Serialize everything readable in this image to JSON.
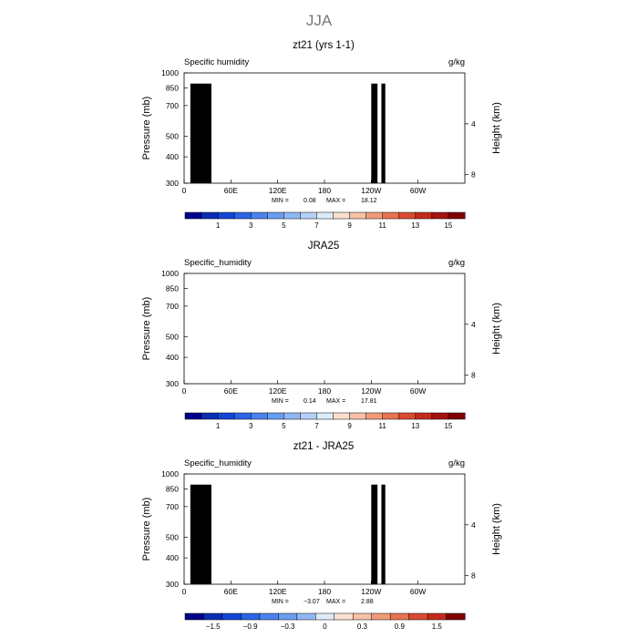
{
  "figure": {
    "title": "JJA"
  },
  "chart_data": [
    {
      "type": "heatmap",
      "title": "zt21 (yrs 1-1)",
      "subtitle_left": "Specific humidity",
      "subtitle_right": "g/kg",
      "xlabel": "",
      "ylabel": "Pressure (mb)",
      "ylabel_right": "Height (km)",
      "x_ticks": [
        "0",
        "60E",
        "120E",
        "180",
        "120W",
        "60W"
      ],
      "x_tick_values": [
        0,
        60,
        120,
        180,
        240,
        300
      ],
      "xlim": [
        0,
        360
      ],
      "y_ticks": [
        "300",
        "400",
        "500",
        "700",
        "850",
        "1000"
      ],
      "y_tick_values": [
        300,
        400,
        500,
        700,
        850,
        1000
      ],
      "ylim": [
        1000,
        300
      ],
      "y_right_ticks": [
        "8",
        "4"
      ],
      "y_right_values": [
        8,
        4
      ],
      "min_label": "MIN =",
      "min_value": "0.08",
      "max_label": "MAX =",
      "max_value": "18.12",
      "colorbar_labels": [
        "1",
        "3",
        "5",
        "7",
        "9",
        "11",
        "13",
        "15"
      ],
      "colorbar_levels": [
        0,
        1,
        2,
        3,
        4,
        5,
        6,
        7,
        8,
        9,
        10,
        11,
        12,
        13,
        14,
        15,
        16
      ],
      "colors": [
        "#00008b",
        "#0a2db5",
        "#1346d4",
        "#2a64e8",
        "#4a82ee",
        "#6a9df0",
        "#8fb8f3",
        "#b5d0f6",
        "#ddeaf8",
        "#f8e0d0",
        "#f6c1a6",
        "#f09a78",
        "#e87351",
        "#da4a30",
        "#c42a1c",
        "#a51310",
        "#800000"
      ],
      "land_blocks": true
    },
    {
      "type": "heatmap",
      "title": "JRA25",
      "subtitle_left": "Specific_humidity",
      "subtitle_right": "g/kg",
      "xlabel": "",
      "ylabel": "Pressure (mb)",
      "ylabel_right": "Height (km)",
      "x_ticks": [
        "0",
        "60E",
        "120E",
        "180",
        "120W",
        "60W"
      ],
      "x_tick_values": [
        0,
        60,
        120,
        180,
        240,
        300
      ],
      "xlim": [
        0,
        360
      ],
      "y_ticks": [
        "300",
        "400",
        "500",
        "700",
        "850",
        "1000"
      ],
      "y_tick_values": [
        300,
        400,
        500,
        700,
        850,
        1000
      ],
      "ylim": [
        1000,
        300
      ],
      "y_right_ticks": [
        "8",
        "4"
      ],
      "y_right_values": [
        8,
        4
      ],
      "min_label": "MIN =",
      "min_value": "0.14",
      "max_label": "MAX =",
      "max_value": "17.81",
      "colorbar_labels": [
        "1",
        "3",
        "5",
        "7",
        "9",
        "11",
        "13",
        "15"
      ],
      "colorbar_levels": [
        0,
        1,
        2,
        3,
        4,
        5,
        6,
        7,
        8,
        9,
        10,
        11,
        12,
        13,
        14,
        15,
        16
      ],
      "colors": [
        "#00008b",
        "#0a2db5",
        "#1346d4",
        "#2a64e8",
        "#4a82ee",
        "#6a9df0",
        "#8fb8f3",
        "#b5d0f6",
        "#ddeaf8",
        "#f8e0d0",
        "#f6c1a6",
        "#f09a78",
        "#e87351",
        "#da4a30",
        "#c42a1c",
        "#a51310",
        "#800000"
      ],
      "land_blocks": false
    },
    {
      "type": "heatmap",
      "title": "zt21 - JRA25",
      "subtitle_left": "Specific_humidity",
      "subtitle_right": "g/kg",
      "xlabel": "",
      "ylabel": "Pressure (mb)",
      "ylabel_right": "Height (km)",
      "x_ticks": [
        "0",
        "60E",
        "120E",
        "180",
        "120W",
        "60W"
      ],
      "x_tick_values": [
        0,
        60,
        120,
        180,
        240,
        300
      ],
      "xlim": [
        0,
        360
      ],
      "y_ticks": [
        "300",
        "400",
        "500",
        "700",
        "850",
        "1000"
      ],
      "y_tick_values": [
        300,
        400,
        500,
        700,
        850,
        1000
      ],
      "ylim": [
        1000,
        300
      ],
      "y_right_ticks": [
        "8",
        "4"
      ],
      "y_right_values": [
        8,
        4
      ],
      "min_label": "MIN =",
      "min_value": "−3.07",
      "max_label": "MAX =",
      "max_value": "2.88",
      "colorbar_labels": [
        "−1.5",
        "−0.9",
        "−0.3",
        "0",
        "0.3",
        "0.9",
        "1.5"
      ],
      "colorbar_levels": [
        -2.1,
        -1.8,
        -1.5,
        -1.2,
        -0.9,
        -0.6,
        -0.3,
        0,
        0.3,
        0.6,
        0.9,
        1.2,
        1.5,
        1.8,
        2.1
      ],
      "colors": [
        "#00008b",
        "#0a2db5",
        "#1346d4",
        "#2a64e8",
        "#4a82ee",
        "#6a9df0",
        "#8fb8f3",
        "#ddeaf8",
        "#f8e0d0",
        "#f6c1a6",
        "#f09a78",
        "#e87351",
        "#da4a30",
        "#c42a1c",
        "#800000"
      ],
      "land_blocks": true
    }
  ]
}
